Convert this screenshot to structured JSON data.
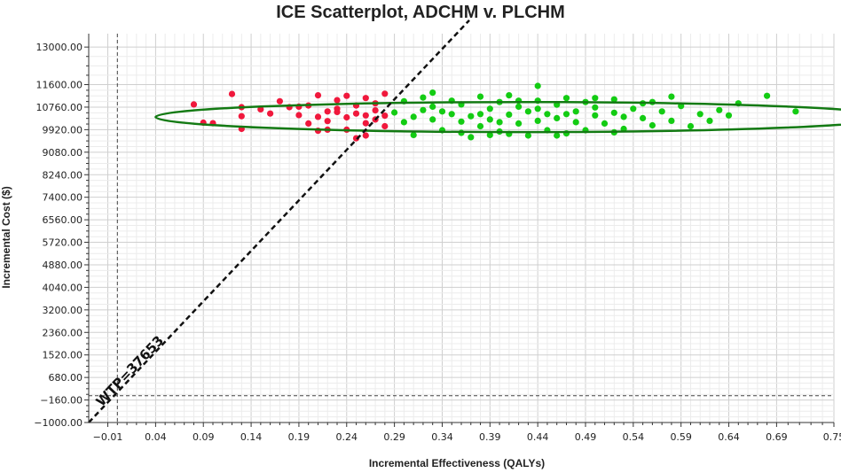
{
  "chart_data": {
    "type": "scatter",
    "title": "ICE Scatterplot, ADCHM v. PLCHM",
    "xlabel": "Incremental Effectiveness (QALYs)",
    "ylabel": "Incremental Cost ($)",
    "xlim": [
      -0.03,
      0.75
    ],
    "ylim": [
      -1000,
      13500
    ],
    "x_ticks": [
      "−0.01",
      "0.04",
      "0.09",
      "0.14",
      "0.19",
      "0.24",
      "0.29",
      "0.34",
      "0.39",
      "0.44",
      "0.49",
      "0.54",
      "0.59",
      "0.64",
      "0.69",
      "0.75"
    ],
    "x_tick_values": [
      -0.01,
      0.04,
      0.09,
      0.14,
      0.19,
      0.24,
      0.29,
      0.34,
      0.39,
      0.44,
      0.49,
      0.54,
      0.59,
      0.64,
      0.69,
      0.75
    ],
    "y_ticks": [
      "13000.00",
      "11600.00",
      "10760.00",
      "9920.00",
      "9080.00",
      "8240.00",
      "7400.00",
      "6560.00",
      "5720.00",
      "4880.00",
      "4040.00",
      "3200.00",
      "2360.00",
      "1520.00",
      "680.00",
      "−160.00",
      "−1000.00"
    ],
    "y_tick_values": [
      13000,
      11600,
      10760,
      9920,
      9080,
      8240,
      7400,
      6560,
      5720,
      4880,
      4040,
      3200,
      2360,
      1520,
      680,
      -160,
      -1000
    ],
    "grid": true,
    "wtp": {
      "label": "WTP=37653",
      "value": 37653,
      "intercept": 130
    },
    "ellipse": {
      "center": [
        0.425,
        10390
      ],
      "semi_axis_x": 0.385,
      "semi_axis_y": 560,
      "color": "#137a13"
    },
    "reference_lines": {
      "x": 0.0,
      "y": 0
    },
    "series": [
      {
        "color": "#f0183c",
        "points": [
          [
            0.08,
            10860
          ],
          [
            0.09,
            10180
          ],
          [
            0.1,
            10160
          ],
          [
            0.12,
            11250
          ],
          [
            0.13,
            10760
          ],
          [
            0.13,
            10420
          ],
          [
            0.13,
            9950
          ],
          [
            0.15,
            10680
          ],
          [
            0.16,
            10520
          ],
          [
            0.17,
            10980
          ],
          [
            0.18,
            10760
          ],
          [
            0.19,
            10460
          ],
          [
            0.2,
            10820
          ],
          [
            0.2,
            10150
          ],
          [
            0.21,
            9880
          ],
          [
            0.21,
            11200
          ],
          [
            0.22,
            10600
          ],
          [
            0.22,
            10240
          ],
          [
            0.23,
            10700
          ],
          [
            0.23,
            11020
          ],
          [
            0.24,
            10380
          ],
          [
            0.24,
            9920
          ],
          [
            0.25,
            10820
          ],
          [
            0.25,
            10520
          ],
          [
            0.26,
            11100
          ],
          [
            0.26,
            10160
          ],
          [
            0.26,
            9700
          ],
          [
            0.27,
            10640
          ],
          [
            0.27,
            10900
          ],
          [
            0.28,
            10440
          ],
          [
            0.28,
            11260
          ],
          [
            0.28,
            10050
          ],
          [
            0.25,
            9600
          ],
          [
            0.23,
            10580
          ],
          [
            0.22,
            9920
          ],
          [
            0.24,
            11180
          ],
          [
            0.27,
            10300
          ],
          [
            0.21,
            10400
          ],
          [
            0.26,
            10450
          ],
          [
            0.19,
            10780
          ]
        ]
      },
      {
        "color": "#13cc13",
        "points": [
          [
            0.29,
            10560
          ],
          [
            0.3,
            10200
          ],
          [
            0.3,
            10980
          ],
          [
            0.31,
            9720
          ],
          [
            0.32,
            10650
          ],
          [
            0.32,
            11120
          ],
          [
            0.33,
            10300
          ],
          [
            0.33,
            10780
          ],
          [
            0.34,
            9900
          ],
          [
            0.35,
            10500
          ],
          [
            0.35,
            11000
          ],
          [
            0.36,
            10220
          ],
          [
            0.36,
            10860
          ],
          [
            0.37,
            9640
          ],
          [
            0.37,
            10420
          ],
          [
            0.38,
            11150
          ],
          [
            0.38,
            10050
          ],
          [
            0.39,
            10700
          ],
          [
            0.39,
            10300
          ],
          [
            0.4,
            10950
          ],
          [
            0.4,
            9850
          ],
          [
            0.41,
            10480
          ],
          [
            0.41,
            11200
          ],
          [
            0.42,
            10150
          ],
          [
            0.42,
            10780
          ],
          [
            0.43,
            9700
          ],
          [
            0.43,
            10600
          ],
          [
            0.44,
            11000
          ],
          [
            0.44,
            10250
          ],
          [
            0.44,
            11550
          ],
          [
            0.45,
            10500
          ],
          [
            0.45,
            9900
          ],
          [
            0.46,
            10850
          ],
          [
            0.46,
            10350
          ],
          [
            0.47,
            11100
          ],
          [
            0.47,
            9780
          ],
          [
            0.48,
            10600
          ],
          [
            0.48,
            10200
          ],
          [
            0.49,
            10950
          ],
          [
            0.49,
            9900
          ],
          [
            0.5,
            10450
          ],
          [
            0.5,
            10750
          ],
          [
            0.51,
            10150
          ],
          [
            0.52,
            11050
          ],
          [
            0.52,
            10550
          ],
          [
            0.53,
            9950
          ],
          [
            0.54,
            10700
          ],
          [
            0.55,
            10350
          ],
          [
            0.55,
            10900
          ],
          [
            0.56,
            10080
          ],
          [
            0.57,
            10600
          ],
          [
            0.58,
            10250
          ],
          [
            0.58,
            11150
          ],
          [
            0.59,
            10800
          ],
          [
            0.6,
            10050
          ],
          [
            0.61,
            10500
          ],
          [
            0.62,
            10250
          ],
          [
            0.63,
            10650
          ],
          [
            0.64,
            10450
          ],
          [
            0.65,
            10900
          ],
          [
            0.68,
            11180
          ],
          [
            0.71,
            10600
          ],
          [
            0.34,
            10600
          ],
          [
            0.36,
            9800
          ],
          [
            0.38,
            10500
          ],
          [
            0.4,
            10200
          ],
          [
            0.42,
            11000
          ],
          [
            0.46,
            9700
          ],
          [
            0.5,
            11100
          ],
          [
            0.53,
            10400
          ],
          [
            0.56,
            10950
          ],
          [
            0.31,
            10400
          ],
          [
            0.33,
            11300
          ],
          [
            0.47,
            10500
          ],
          [
            0.44,
            10700
          ],
          [
            0.39,
            9720
          ],
          [
            0.41,
            9760
          ],
          [
            0.52,
            9820
          ]
        ]
      }
    ]
  }
}
